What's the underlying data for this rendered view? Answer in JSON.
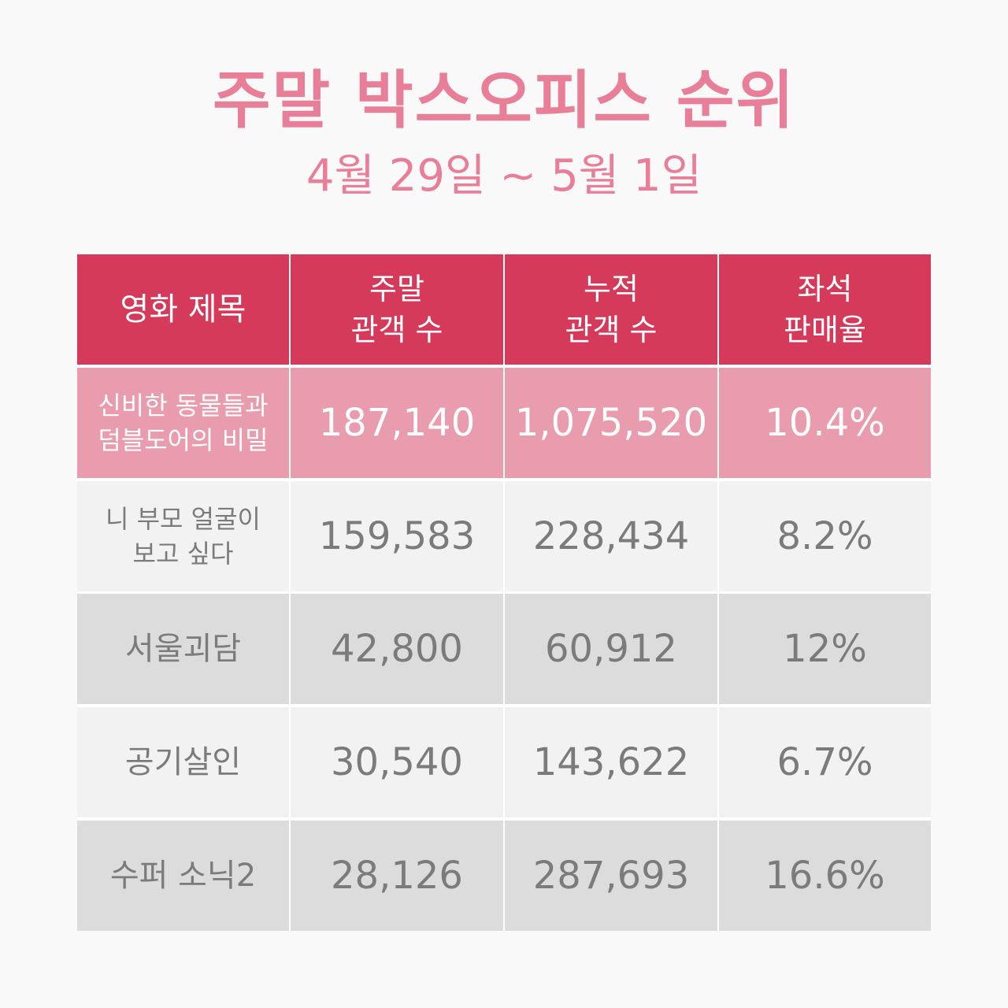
{
  "title": "주말 박스오피스 순위",
  "subtitle": "4월 29일 ~ 5월 1일",
  "colors": {
    "title": "#e87e97",
    "header_bg": "#d63a5b",
    "highlight_row_bg": "#e99cae",
    "row_light_bg": "#f2f2f2",
    "row_dark_bg": "#dcdcdc",
    "row_text": "#7b7b7b",
    "highlight_text": "#ffffff"
  },
  "chart_data": {
    "type": "table",
    "title": "주말 박스오피스 순위",
    "subtitle": "4월 29일 ~ 5월 1일",
    "columns": [
      "영화 제목",
      "주말\n관객 수",
      "누적\n관객 수",
      "좌석\n판매율"
    ],
    "rows": [
      [
        "신비한 동물들과\n덤블도어의 비밀",
        "187,140",
        "1,075,520",
        "10.4%"
      ],
      [
        "니 부모 얼굴이\n보고 싶다",
        "159,583",
        "228,434",
        "8.2%"
      ],
      [
        "서울괴담",
        "42,800",
        "60,912",
        "12%"
      ],
      [
        "공기살인",
        "30,540",
        "143,622",
        "6.7%"
      ],
      [
        "수퍼 소닉2",
        "28,126",
        "287,693",
        "16.6%"
      ]
    ]
  }
}
